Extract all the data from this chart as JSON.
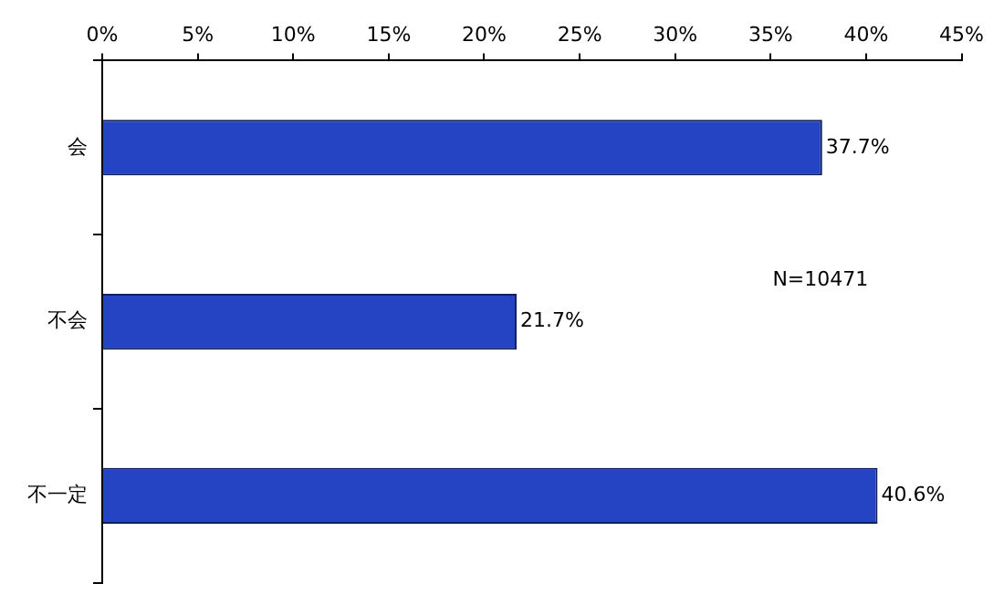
{
  "chart_data": {
    "type": "bar",
    "orientation": "horizontal",
    "categories": [
      "会",
      "不会",
      "不一定"
    ],
    "values": [
      37.7,
      21.7,
      40.6
    ],
    "color": "#2444c4",
    "value_labels": [
      "37.7%",
      "21.7%",
      "40.6%"
    ],
    "xlim": [
      0,
      45
    ],
    "xticks": [
      {
        "value": 0,
        "label": "0%"
      },
      {
        "value": 5,
        "label": "5%"
      },
      {
        "value": 10,
        "label": "10%"
      },
      {
        "value": 15,
        "label": "15%"
      },
      {
        "value": 20,
        "label": "20%"
      },
      {
        "value": 25,
        "label": "25%"
      },
      {
        "value": 30,
        "label": "30%"
      },
      {
        "value": 35,
        "label": "35%"
      },
      {
        "value": 40,
        "label": "40%"
      },
      {
        "value": 45,
        "label": "45%"
      }
    ],
    "annotations": [
      "N=10471"
    ],
    "grid": false,
    "legend": false
  }
}
